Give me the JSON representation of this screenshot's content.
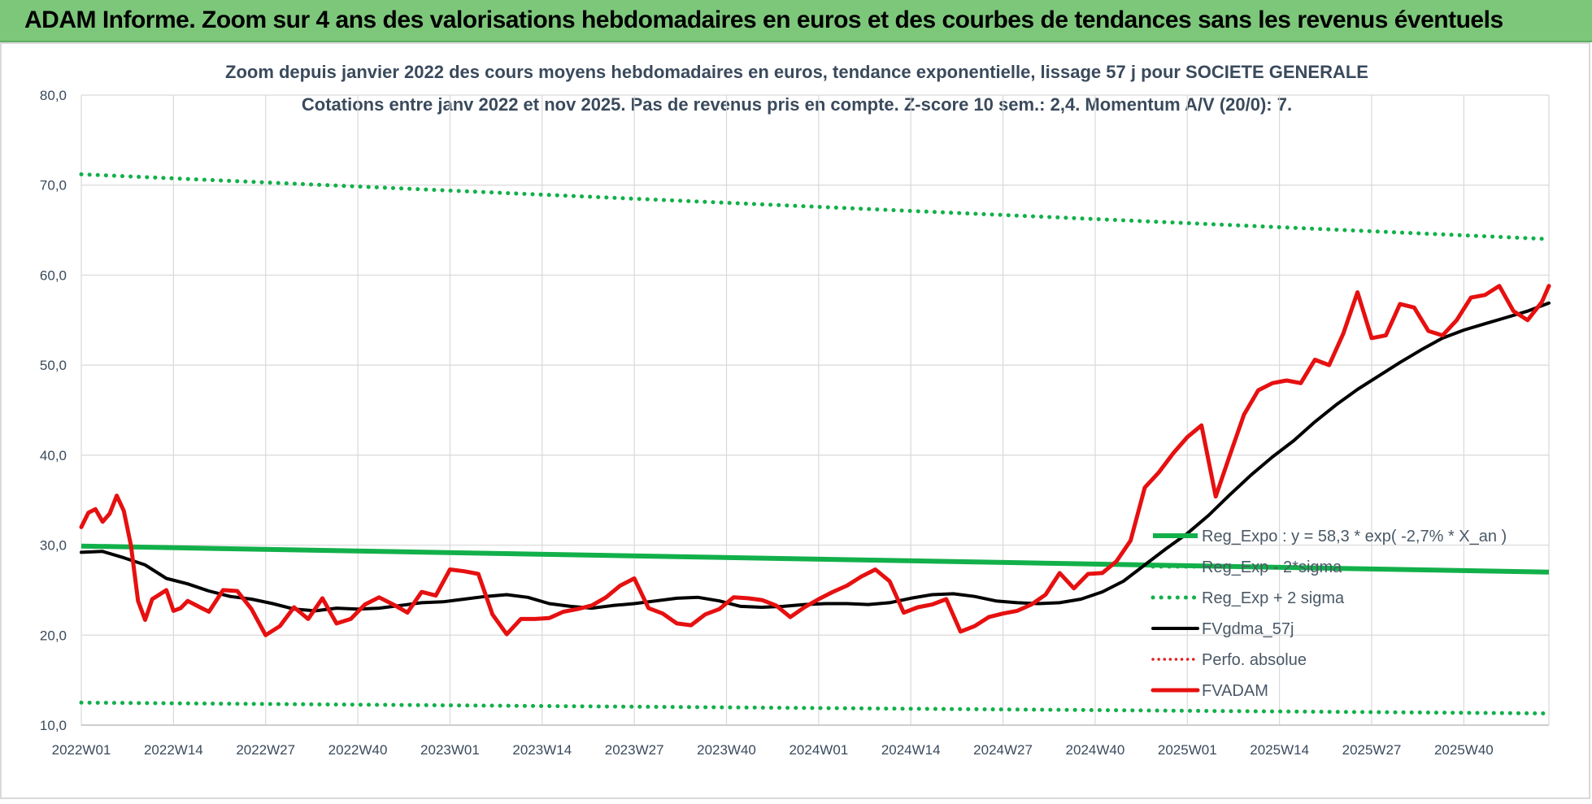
{
  "banner": {
    "title": "ADAM Informe. Zoom sur 4 ans des valorisations hebdomadaires en euros et des courbes de tendances sans les revenus éventuels"
  },
  "chart_data": {
    "type": "line",
    "title": "Zoom depuis janvier 2022 des cours moyens hebdomadaires en euros, tendance exponentielle, lissage 57 j pour SOCIETE GENERALE",
    "subtitle": "Cotations entre janv 2022 et nov 2025. Pas de revenus pris en compte. Z-score 10 sem.: 2,4. Momentum A/V (20/0): 7.",
    "xlabel": "",
    "ylabel": "",
    "ylim": [
      10,
      80
    ],
    "yticks": [
      "10,0",
      "20,0",
      "30,0",
      "40,0",
      "50,0",
      "60,0",
      "70,0",
      "80,0"
    ],
    "x_tick_labels": [
      "2022W01",
      "2022W14",
      "2022W27",
      "2022W40",
      "2023W01",
      "2023W14",
      "2023W27",
      "2023W40",
      "2024W01",
      "2024W14",
      "2024W27",
      "2024W40",
      "2025W01",
      "2025W14",
      "2025W27",
      "2025W40"
    ],
    "x_tick_index": [
      0,
      13,
      26,
      39,
      52,
      65,
      78,
      91,
      104,
      117,
      130,
      143,
      156,
      169,
      182,
      195
    ],
    "x_max_index": 207,
    "grid": "vertical and horizontal",
    "legend_position": "right",
    "colors": {
      "reg_expo": "#12b04a",
      "reg_band": "#12b04a",
      "fvgdma": "#000000",
      "perfo": "#e02020",
      "fvadam": "#e61010",
      "grid": "#d9d9d9",
      "title": "#3a4a5c",
      "axis_text": "#3a4a5c"
    },
    "series": [
      {
        "name": "Reg_Expo : y = 58,3 * exp( -2,7% *  X_an )",
        "style": "solid-thick",
        "x": [
          0,
          207
        ],
        "values": [
          29.9,
          27.0
        ]
      },
      {
        "name": "Reg_Exp - 2*sigma",
        "style": "dotted",
        "x": [
          0,
          207
        ],
        "values": [
          12.5,
          11.3
        ]
      },
      {
        "name": "Reg_Exp + 2 sigma",
        "style": "dotted",
        "x": [
          0,
          207
        ],
        "values": [
          71.2,
          64.0
        ]
      },
      {
        "name": "FVgdma_57j",
        "style": "solid",
        "x": [
          0,
          3,
          6,
          9,
          12,
          15,
          18,
          21,
          24,
          27,
          30,
          33,
          36,
          39,
          42,
          45,
          48,
          51,
          54,
          57,
          60,
          63,
          66,
          69,
          72,
          75,
          78,
          81,
          84,
          87,
          90,
          93,
          96,
          99,
          102,
          105,
          108,
          111,
          114,
          117,
          120,
          123,
          126,
          129,
          132,
          135,
          138,
          141,
          144,
          147,
          150,
          153,
          156,
          159,
          162,
          165,
          168,
          171,
          174,
          177,
          180,
          183,
          186,
          189,
          192,
          195,
          198,
          201,
          204,
          207
        ],
        "values": [
          29.2,
          29.3,
          28.6,
          27.8,
          26.3,
          25.7,
          24.9,
          24.3,
          24.0,
          23.5,
          22.9,
          22.7,
          23.0,
          22.9,
          23.0,
          23.3,
          23.6,
          23.7,
          24.0,
          24.3,
          24.5,
          24.2,
          23.5,
          23.2,
          23.0,
          23.3,
          23.5,
          23.8,
          24.1,
          24.2,
          23.8,
          23.2,
          23.1,
          23.2,
          23.4,
          23.5,
          23.5,
          23.4,
          23.6,
          24.1,
          24.5,
          24.6,
          24.3,
          23.8,
          23.6,
          23.5,
          23.6,
          24.0,
          24.8,
          26.0,
          27.8,
          29.6,
          31.3,
          33.3,
          35.6,
          37.8,
          39.8,
          41.6,
          43.7,
          45.6,
          47.3,
          48.8,
          50.3,
          51.7,
          53.0,
          53.9,
          54.6,
          55.3,
          56.0,
          56.9
        ]
      },
      {
        "name": "Perfo. absolue",
        "style": "dotted",
        "x": [],
        "values": []
      },
      {
        "name": "FVADAM",
        "style": "solid-thick",
        "x": [
          0,
          1,
          2,
          3,
          4,
          5,
          6,
          7,
          8,
          9,
          10,
          11,
          12,
          13,
          14,
          15,
          16,
          17,
          18,
          20,
          22,
          24,
          26,
          28,
          30,
          32,
          34,
          36,
          38,
          40,
          42,
          44,
          46,
          48,
          50,
          52,
          54,
          56,
          58,
          60,
          62,
          64,
          66,
          68,
          70,
          72,
          74,
          76,
          78,
          80,
          82,
          84,
          86,
          88,
          90,
          92,
          94,
          96,
          98,
          100,
          102,
          104,
          106,
          108,
          110,
          112,
          114,
          116,
          118,
          120,
          122,
          124,
          126,
          128,
          130,
          132,
          134,
          136,
          138,
          140,
          142,
          144,
          146,
          148,
          150,
          152,
          154,
          156,
          158,
          160,
          162,
          164,
          166,
          168,
          170,
          172,
          174,
          176,
          178,
          180,
          182,
          184,
          186,
          188,
          190,
          192,
          194,
          196,
          198,
          200,
          202,
          204,
          206,
          207
        ],
        "values": [
          32.0,
          33.6,
          34.0,
          32.6,
          33.5,
          35.5,
          33.8,
          30.0,
          23.8,
          21.7,
          24.0,
          24.5,
          25.0,
          22.7,
          23.0,
          23.8,
          23.4,
          23.0,
          22.6,
          25.0,
          24.9,
          22.9,
          20.0,
          21.0,
          23.1,
          21.8,
          24.1,
          21.3,
          21.8,
          23.4,
          24.2,
          23.4,
          22.5,
          24.8,
          24.4,
          27.3,
          27.1,
          26.8,
          22.3,
          20.1,
          21.8,
          21.8,
          21.9,
          22.6,
          22.9,
          23.3,
          24.2,
          25.5,
          26.3,
          23.0,
          22.4,
          21.3,
          21.1,
          22.3,
          22.9,
          24.2,
          24.1,
          23.9,
          23.3,
          22.0,
          23.1,
          24.0,
          24.8,
          25.5,
          26.5,
          27.3,
          26.0,
          22.5,
          23.1,
          23.4,
          24.0,
          20.4,
          21.0,
          22.0,
          22.4,
          22.7,
          23.4,
          24.5,
          26.9,
          25.2,
          26.8,
          26.9,
          28.2,
          30.5,
          36.4,
          38.1,
          40.2,
          42.0,
          43.3,
          35.4,
          40.0,
          44.5,
          47.2,
          48.0,
          48.3,
          48.0,
          50.6,
          50.0,
          53.5,
          58.1,
          53.0,
          53.3,
          56.8,
          56.4,
          53.8,
          53.3,
          55.0,
          57.5,
          57.8,
          58.8,
          56.0,
          55.0,
          57.0,
          58.8
        ]
      }
    ]
  }
}
